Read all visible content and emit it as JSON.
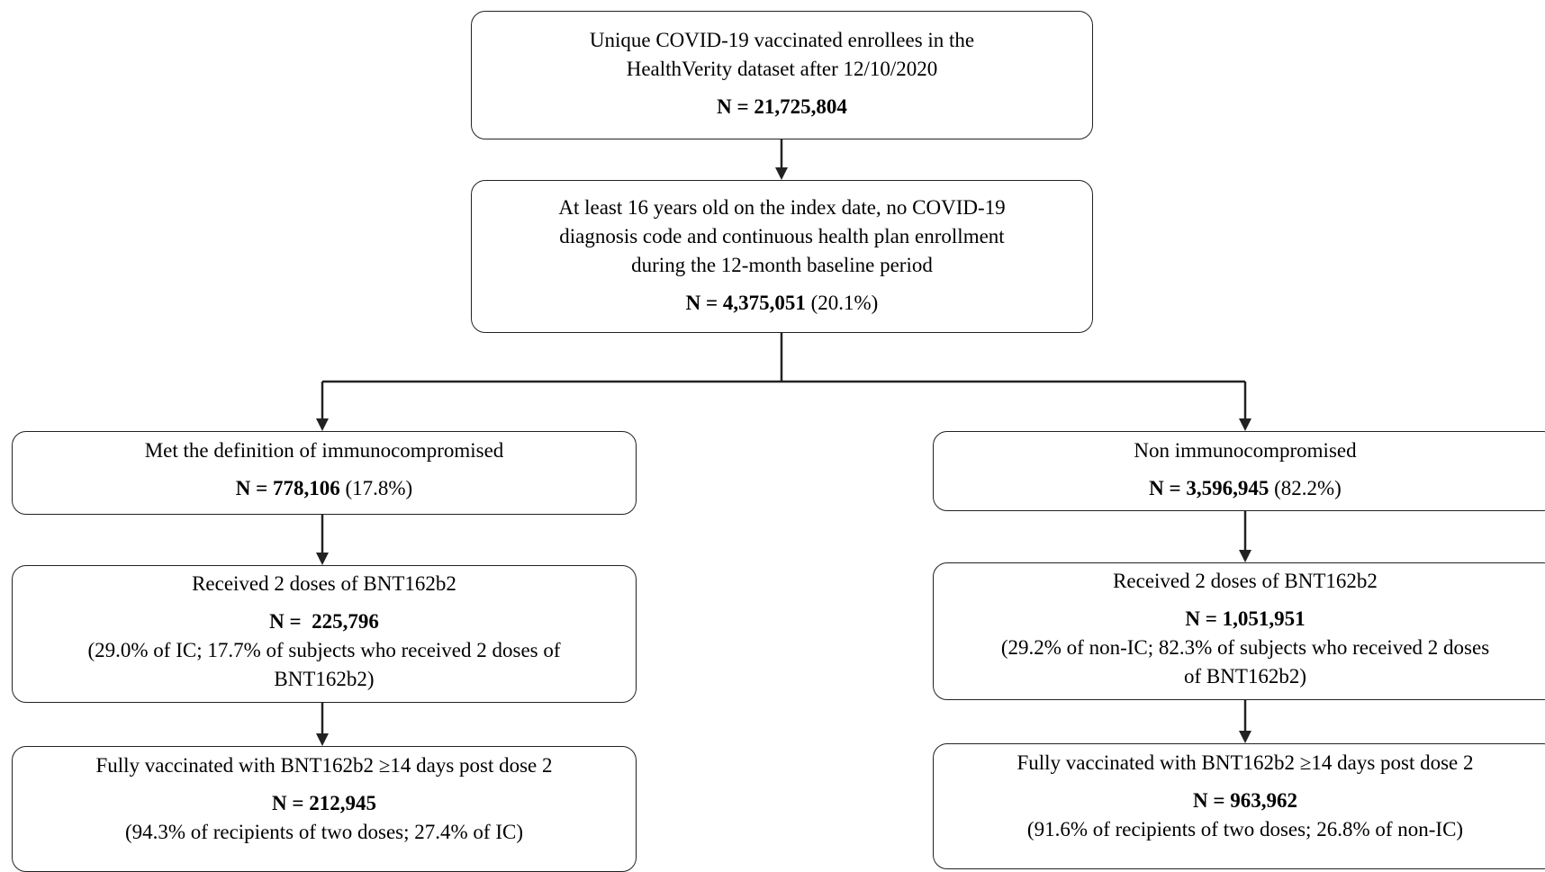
{
  "boxes": {
    "top": {
      "line1": "Unique COVID-19 vaccinated enrollees in the",
      "line2": "HealthVerity  dataset after 12/10/2020",
      "n": "N = 21,725,804"
    },
    "eligible": {
      "line1": "At least 16 years old on the index date, no COVID-19",
      "line2": "diagnosis code and continuous health plan enrollment",
      "line3": "during the 12-month baseline period",
      "n": "N = 4,375,051",
      "pct": " (20.1%)"
    },
    "ic": {
      "label": "Met the definition of immunocompromised",
      "n": "N = 778,106",
      "pct": " (17.8%)"
    },
    "nonic": {
      "label": "Non immunocompromised",
      "n": "N = 3,596,945",
      "pct": " (82.2%)"
    },
    "ic_2dose": {
      "label": "Received 2 doses of BNT162b2",
      "n": "N =  225,796",
      "detail1": "(29.0% of IC; 17.7% of subjects who received 2 doses of",
      "detail2": "BNT162b2)"
    },
    "nonic_2dose": {
      "label": "Received 2 doses of BNT162b2",
      "n": "N = 1,051,951",
      "detail1": "(29.2% of non-IC; 82.3% of subjects who received 2 doses",
      "detail2": "of BNT162b2)"
    },
    "ic_full": {
      "label": "Fully vaccinated with BNT162b2 ≥14 days post dose 2",
      "n": "N = 212,945",
      "detail": "(94.3% of recipients of two doses; 27.4% of IC)"
    },
    "nonic_full": {
      "label": "Fully vaccinated with BNT162b2 ≥14 days post dose 2",
      "n": "N = 963,962",
      "detail": "(91.6% of recipients of two doses; 26.8% of non-IC)"
    }
  }
}
